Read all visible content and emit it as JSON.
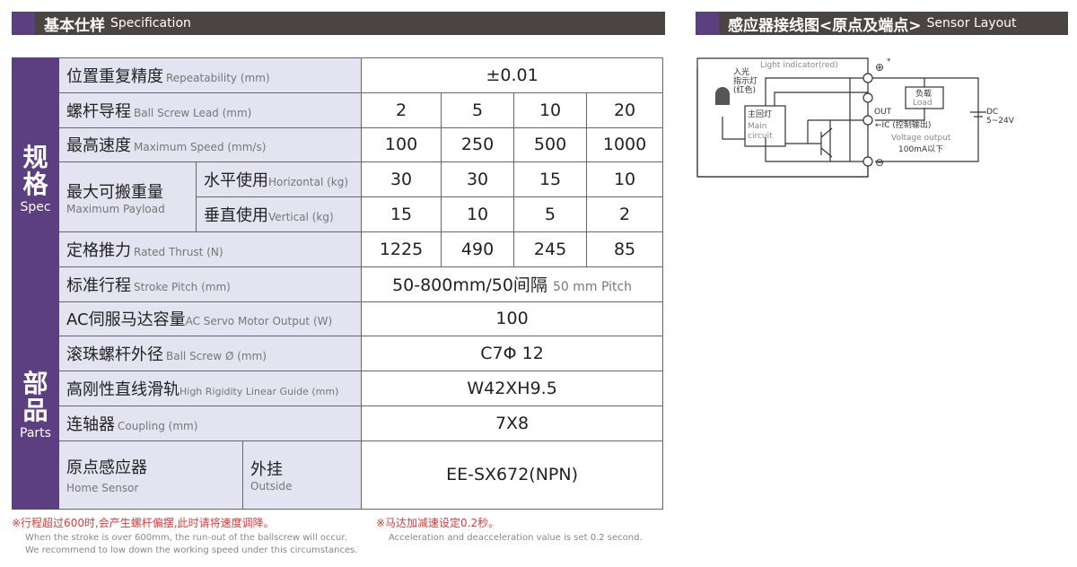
{
  "spec_header": {
    "cn": "基本仕样",
    "en": "Specification"
  },
  "sensor_header": {
    "cn": "感应器接线图<原点及端点>",
    "en": "Sensor Layout"
  },
  "groups": {
    "spec": {
      "cn": "规格",
      "en": "Spec"
    },
    "parts": {
      "cn": "部品",
      "en": "Parts"
    }
  },
  "rows": {
    "repeatability": {
      "cn": "位置重复精度",
      "en": "Repeatability (mm)",
      "value": "±0.01"
    },
    "lead": {
      "cn": "螺杆导程",
      "en": "Ball Screw Lead (mm)",
      "values": [
        "2",
        "5",
        "10",
        "20"
      ]
    },
    "speed": {
      "cn": "最高速度",
      "en": "Maximum Speed (mm/s)",
      "values": [
        "100",
        "250",
        "500",
        "1000"
      ]
    },
    "payload": {
      "cn": "最大可搬重量",
      "en": "Maximum Payload",
      "horizontal": {
        "cn": "水平使用",
        "en": "Horizontal (kg)",
        "values": [
          "30",
          "30",
          "15",
          "10"
        ]
      },
      "vertical": {
        "cn": "垂直使用",
        "en": "Vertical (kg)",
        "values": [
          "15",
          "10",
          "5",
          "2"
        ]
      }
    },
    "thrust": {
      "cn": "定格推力",
      "en": "Rated Thrust (N)",
      "values": [
        "1225",
        "490",
        "245",
        "85"
      ]
    },
    "stroke": {
      "cn": "标准行程",
      "en": "Stroke Pitch (mm)",
      "value": "50-800mm/50间隔",
      "value_en": "50 mm Pitch"
    },
    "motor": {
      "cn": "AC伺服马达容量",
      "en": "AC Servo Motor Output (W)",
      "value": "100"
    },
    "screw": {
      "cn": "滚珠螺杆外径",
      "en": "Ball Screw Ø (mm)",
      "value": "C7Φ 12"
    },
    "guide": {
      "cn": "高刚性直线滑轨",
      "en": "High Rigidity Linear Guide (mm)",
      "value": "W42XH9.5"
    },
    "coupling": {
      "cn": "连轴器",
      "en": "Coupling (mm)",
      "value": "7X8"
    },
    "home": {
      "cn": "原点感应器",
      "en": "Home Sensor",
      "sub_cn": "外挂",
      "sub_en": "Outside",
      "value": "EE-SX672(NPN)"
    }
  },
  "notes": {
    "n1_cn": "※行程超过600时,会产生螺杆偏摆,此时请将速度调降。",
    "n1_en1": "When the stroke is over 600mm, the run-out of the ballscrew will occur.",
    "n1_en2": "We recommend to low down the working speed under this circumstances.",
    "n2_cn": "※马达加减速设定0.2秒。",
    "n2_en": "Acceleration and deacceleration value is set 0.2 second."
  },
  "diagram": {
    "light_en": "Light indicator(red)",
    "light_cn1": "入光",
    "light_cn2": "指示灯",
    "light_cn3": "(红色)",
    "main_cn": "主回灯",
    "main_en1": "Main",
    "main_en2": "circuit",
    "load_cn": "负载",
    "load_en": "Load",
    "out": "OUT",
    "ic": "←IC (控制输出)",
    "vout": "Voltage output",
    "ma": "100mA以下",
    "dc": "DC",
    "volt": "5~24V",
    "plus": "⊕",
    "minus": "⊖",
    "star": "*"
  },
  "colors": {
    "purple": "#5b3f80",
    "dark": "#4a4543",
    "label_bg": "#e4e3f1",
    "note_red": "#e23a3a"
  }
}
